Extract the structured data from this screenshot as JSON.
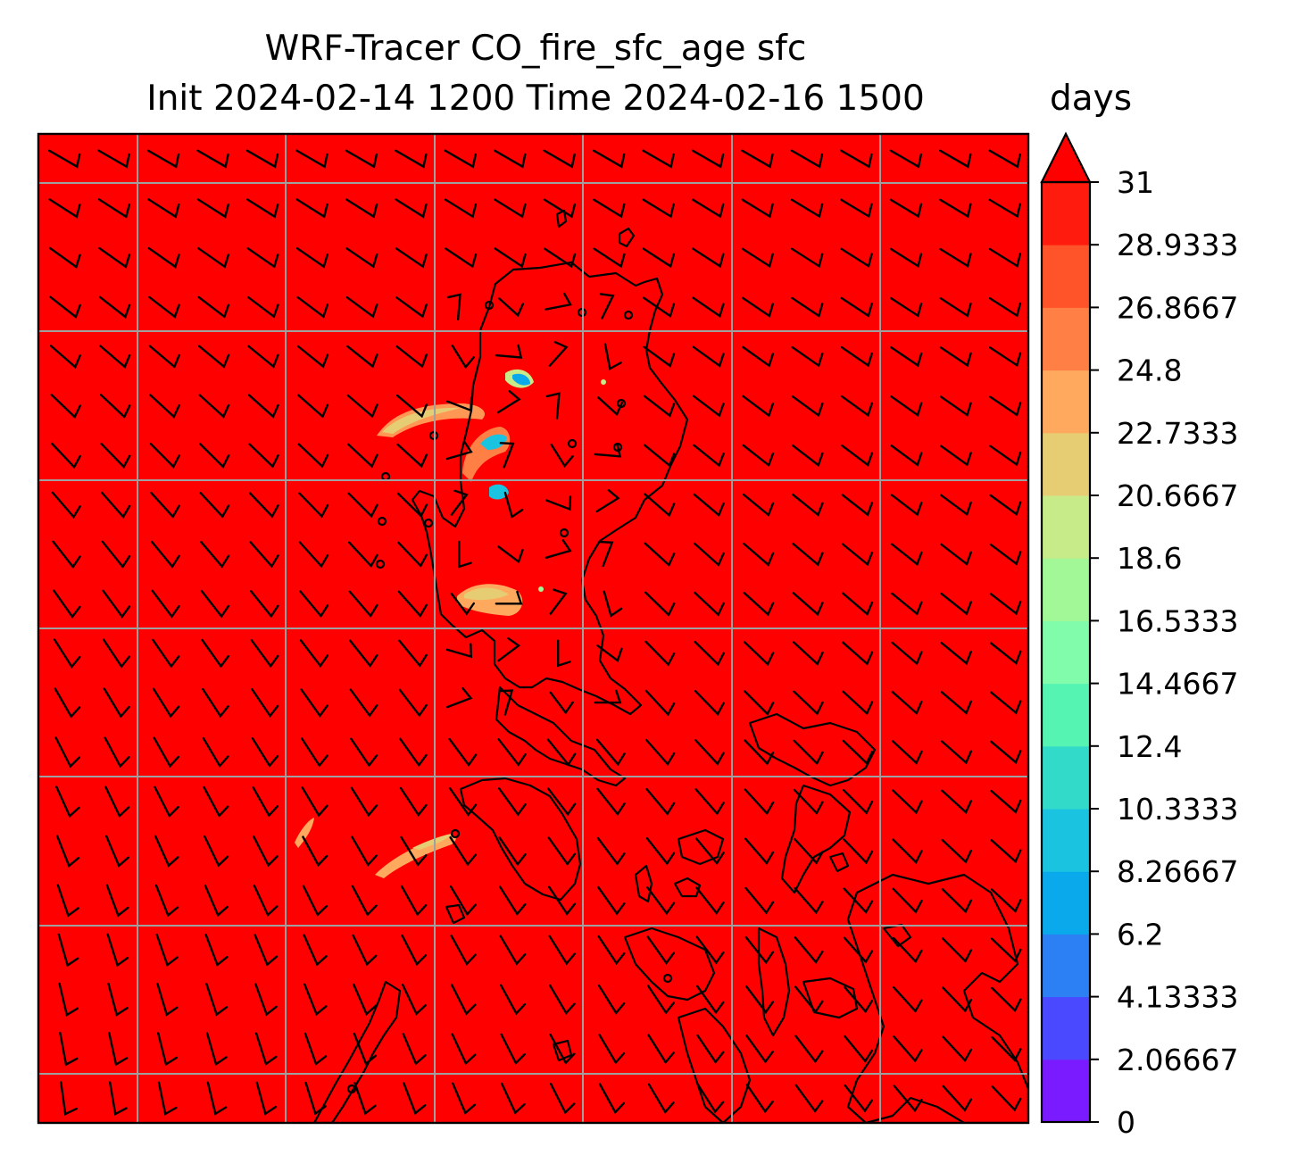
{
  "title_line1": "WRF-Tracer CO_fire_sfc_age sfc",
  "title_line2": "Init 2024-02-14 1200 Time 2024-02-16 1500",
  "colorbar": {
    "units": "days",
    "min": 0,
    "max": 31,
    "extend": "max",
    "ticks": [
      "0",
      "2.06667",
      "4.13333",
      "6.2",
      "8.26667",
      "10.3333",
      "12.4",
      "14.4667",
      "16.5333",
      "18.6",
      "20.6667",
      "22.7333",
      "24.8",
      "26.8667",
      "28.9333",
      "31"
    ],
    "colors": [
      "#7a1bff",
      "#4a49ff",
      "#2c80f4",
      "#0aa9ec",
      "#1ac4e0",
      "#32dbc9",
      "#55f4b3",
      "#80fcaa",
      "#a2f796",
      "#c8eb8a",
      "#e6cd74",
      "#ffa95e",
      "#ff7f45",
      "#ff5429",
      "#ff1c0f",
      "#ff0000"
    ],
    "over_color": "#ff0000"
  },
  "map": {
    "background_color": "#ff0000",
    "gridline_color": "#a0a0a0",
    "coastline_color": "#000000",
    "wind_barb_color": "#000000"
  }
}
